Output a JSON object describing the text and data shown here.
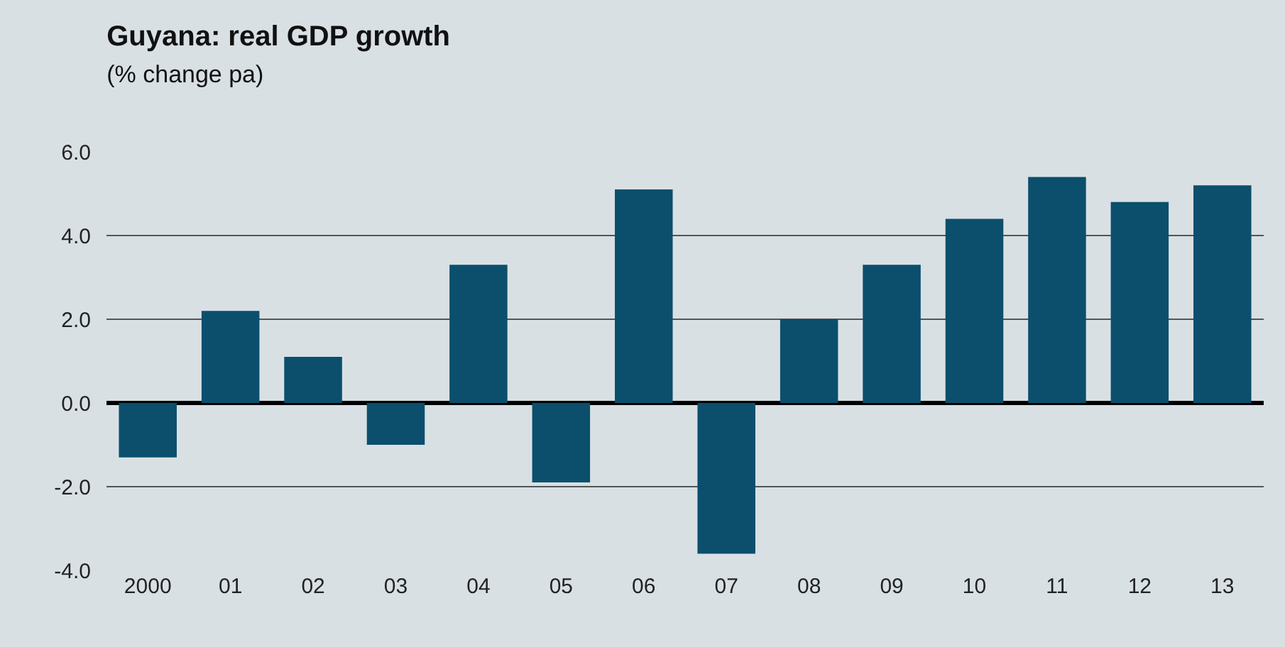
{
  "chart_data": {
    "type": "bar",
    "title": "Guyana: real GDP growth",
    "subtitle": "(% change pa)",
    "categories": [
      "2000",
      "01",
      "02",
      "03",
      "04",
      "05",
      "06",
      "07",
      "08",
      "09",
      "10",
      "11",
      "12",
      "13"
    ],
    "values": [
      -1.3,
      2.2,
      1.1,
      -1.0,
      3.3,
      -1.9,
      5.1,
      -3.6,
      2.0,
      3.3,
      4.4,
      5.4,
      4.8,
      5.2
    ],
    "color": "#0b4f6c",
    "ylim": [
      -4,
      6
    ],
    "yticks": [
      {
        "value": -4,
        "label": "-4.0"
      },
      {
        "value": -2,
        "label": "-2.0"
      },
      {
        "value": 0,
        "label": "0.0"
      },
      {
        "value": 2,
        "label": "2.0"
      },
      {
        "value": 4,
        "label": "4.0"
      },
      {
        "value": 6,
        "label": "6.0"
      }
    ],
    "grid": "y"
  }
}
